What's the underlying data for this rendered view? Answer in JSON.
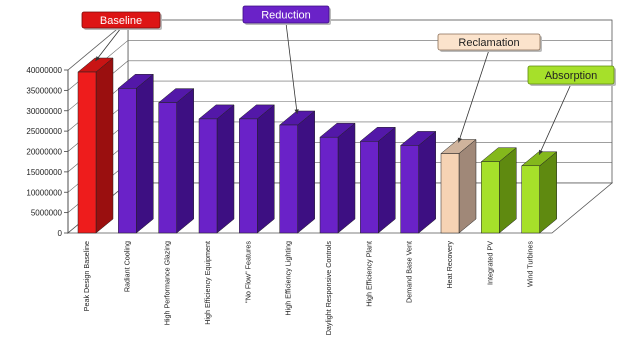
{
  "chart_data": {
    "type": "bar",
    "style": "3d",
    "title": "",
    "xlabel": "",
    "ylabel": "",
    "ylim": [
      0,
      40000000
    ],
    "yticks": [
      0,
      5000000,
      10000000,
      15000000,
      20000000,
      25000000,
      30000000,
      35000000,
      40000000
    ],
    "grid": true,
    "categories": [
      "Peak Design Baseline",
      "Radiant Cooling",
      "High Performance Glazing",
      "High Efficiency Equipment",
      "\"No Flow\" Features",
      "High Efficiency Lighting",
      "Daylight Responsive Controls",
      "High Efficiency Plant",
      "Demand Base Vent",
      "Heat Recovery",
      "Integrated PV",
      "Wind Turbines"
    ],
    "values": [
      39500000,
      35500000,
      32000000,
      28000000,
      28000000,
      26500000,
      23500000,
      22500000,
      21500000,
      19500000,
      17500000,
      16500000
    ],
    "bar_groups": [
      "Baseline",
      "Reduction",
      "Reduction",
      "Reduction",
      "Reduction",
      "Reduction",
      "Reduction",
      "Reduction",
      "Reduction",
      "Reclamation",
      "Absorption",
      "Absorption"
    ],
    "group_colors": {
      "Baseline": {
        "front": "#ee1c1c",
        "side": "#9a0f0f",
        "top": "#c81414"
      },
      "Reduction": {
        "front": "#6a22c8",
        "side": "#3d0f82",
        "top": "#5318a8"
      },
      "Reclamation": {
        "front": "#f6d3b4",
        "side": "#a08878",
        "top": "#cfb39c"
      },
      "Absorption": {
        "front": "#a6e02a",
        "side": "#5f8a10",
        "top": "#84b81c"
      }
    },
    "annotations": [
      {
        "label": "Baseline",
        "target_category": "Peak Design Baseline",
        "fill": "#dd1515",
        "text_color": "#ffffff",
        "border": "#7a0a0a"
      },
      {
        "label": "Reduction",
        "target_category": "High Efficiency Lighting",
        "fill": "#6a22c8",
        "text_color": "#ffffff",
        "border": "#3d0f82"
      },
      {
        "label": "Reclamation",
        "target_category": "Heat Recovery",
        "fill": "#fbe3cc",
        "text_color": "#222222",
        "border": "#8a6d55"
      },
      {
        "label": "Absorption",
        "target_category": "Wind Turbines",
        "fill": "#a6e02a",
        "text_color": "#222222",
        "border": "#5f8a10"
      }
    ]
  }
}
